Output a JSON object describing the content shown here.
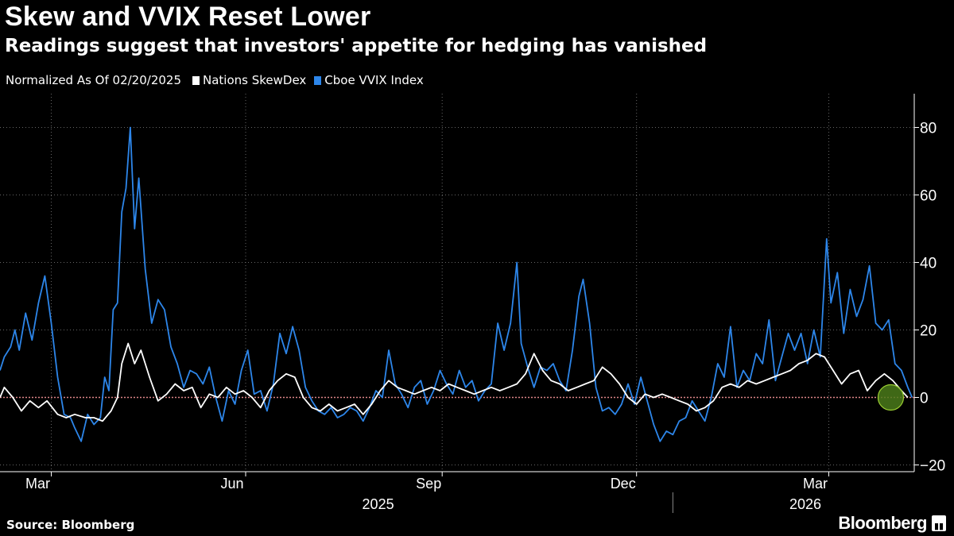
{
  "header": {
    "title": "Skew and VVIX Reset Lower",
    "subtitle": "Readings suggest that investors' appetite for hedging has vanished"
  },
  "legend": {
    "note": "Normalized As Of 02/20/2025",
    "items": [
      {
        "label": "Nations SkewDex",
        "color": "#ffffff"
      },
      {
        "label": "Cboe VVIX Index",
        "color": "#2d86ea"
      }
    ]
  },
  "footer": {
    "source": "Source: Bloomberg",
    "brand": "Bloomberg"
  },
  "colors": {
    "background": "#000000",
    "skewdex": "#ffffff",
    "vvix": "#2d86ea",
    "zero_line": "#e0868a",
    "highlight_fill": "#4a7a1a",
    "highlight_stroke": "#9acd32",
    "grid": "#666666"
  },
  "chart_data": {
    "type": "line",
    "title": "Skew and VVIX Reset Lower",
    "subtitle": "Readings suggest that investors' appetite for hedging has vanished",
    "x_start": "2025-02-20",
    "x_end": "2026-04-24",
    "xlim": [
      "2025-02-20",
      "2026-04-24"
    ],
    "ylim": [
      -22,
      90
    ],
    "y_ticks": [
      -20,
      0,
      20,
      40,
      60,
      80
    ],
    "y_axis_side": "right",
    "grid": "dotted",
    "legend_position": "top-left",
    "month_ticks": [
      {
        "label": "Mar",
        "date": "2025-03-16"
      },
      {
        "label": "Jun",
        "date": "2025-06-15"
      },
      {
        "label": "Sep",
        "date": "2025-09-15"
      },
      {
        "label": "Dec",
        "date": "2025-12-15"
      },
      {
        "label": "Mar",
        "date": "2026-03-15"
      }
    ],
    "year_labels": [
      {
        "label": "2025",
        "date": "2025-08-16"
      },
      {
        "label": "2026",
        "date": "2026-03-04"
      }
    ],
    "highlight_point": {
      "date": "2026-04-13",
      "value": 0
    },
    "series": [
      {
        "name": "Nations SkewDex",
        "points": [
          [
            "2025-02-20",
            0
          ],
          [
            "2025-02-22",
            3
          ],
          [
            "2025-02-26",
            0
          ],
          [
            "2025-03-02",
            -4
          ],
          [
            "2025-03-06",
            -1
          ],
          [
            "2025-03-10",
            -3
          ],
          [
            "2025-03-14",
            -1
          ],
          [
            "2025-03-19",
            -5
          ],
          [
            "2025-03-23",
            -6
          ],
          [
            "2025-03-27",
            -5
          ],
          [
            "2025-04-01",
            -6
          ],
          [
            "2025-04-05",
            -6
          ],
          [
            "2025-04-09",
            -7
          ],
          [
            "2025-04-13",
            -4
          ],
          [
            "2025-04-16",
            0
          ],
          [
            "2025-04-18",
            10
          ],
          [
            "2025-04-21",
            16
          ],
          [
            "2025-04-24",
            10
          ],
          [
            "2025-04-27",
            14
          ],
          [
            "2025-05-01",
            6
          ],
          [
            "2025-05-05",
            -1
          ],
          [
            "2025-05-09",
            1
          ],
          [
            "2025-05-13",
            4
          ],
          [
            "2025-05-17",
            2
          ],
          [
            "2025-05-21",
            3
          ],
          [
            "2025-05-25",
            -3
          ],
          [
            "2025-05-29",
            1
          ],
          [
            "2025-06-02",
            0
          ],
          [
            "2025-06-06",
            3
          ],
          [
            "2025-06-10",
            1
          ],
          [
            "2025-06-14",
            2
          ],
          [
            "2025-06-18",
            0
          ],
          [
            "2025-06-22",
            -3
          ],
          [
            "2025-06-26",
            2
          ],
          [
            "2025-06-30",
            5
          ],
          [
            "2025-07-04",
            7
          ],
          [
            "2025-07-08",
            6
          ],
          [
            "2025-07-12",
            0
          ],
          [
            "2025-07-16",
            -3
          ],
          [
            "2025-07-20",
            -4
          ],
          [
            "2025-07-24",
            -2
          ],
          [
            "2025-07-28",
            -4
          ],
          [
            "2025-08-01",
            -3
          ],
          [
            "2025-08-05",
            -2
          ],
          [
            "2025-08-09",
            -5
          ],
          [
            "2025-08-13",
            -2
          ],
          [
            "2025-08-17",
            2
          ],
          [
            "2025-08-21",
            5
          ],
          [
            "2025-08-25",
            3
          ],
          [
            "2025-08-29",
            2
          ],
          [
            "2025-09-02",
            1
          ],
          [
            "2025-09-06",
            2
          ],
          [
            "2025-09-10",
            3
          ],
          [
            "2025-09-14",
            2
          ],
          [
            "2025-09-18",
            4
          ],
          [
            "2025-09-22",
            3
          ],
          [
            "2025-09-26",
            2
          ],
          [
            "2025-09-30",
            1
          ],
          [
            "2025-10-04",
            2
          ],
          [
            "2025-10-08",
            3
          ],
          [
            "2025-10-12",
            2
          ],
          [
            "2025-10-16",
            3
          ],
          [
            "2025-10-20",
            4
          ],
          [
            "2025-10-24",
            7
          ],
          [
            "2025-10-28",
            13
          ],
          [
            "2025-11-01",
            8
          ],
          [
            "2025-11-05",
            5
          ],
          [
            "2025-11-09",
            4
          ],
          [
            "2025-11-13",
            2
          ],
          [
            "2025-11-17",
            3
          ],
          [
            "2025-11-21",
            4
          ],
          [
            "2025-11-25",
            5
          ],
          [
            "2025-11-29",
            9
          ],
          [
            "2025-12-03",
            7
          ],
          [
            "2025-12-07",
            4
          ],
          [
            "2025-12-11",
            0
          ],
          [
            "2025-12-15",
            -2
          ],
          [
            "2025-12-19",
            1
          ],
          [
            "2025-12-23",
            0
          ],
          [
            "2025-12-27",
            1
          ],
          [
            "2025-12-31",
            0
          ],
          [
            "2026-01-04",
            -1
          ],
          [
            "2026-01-08",
            -2
          ],
          [
            "2026-01-12",
            -4
          ],
          [
            "2026-01-16",
            -3
          ],
          [
            "2026-01-20",
            -1
          ],
          [
            "2026-01-24",
            3
          ],
          [
            "2026-01-28",
            4
          ],
          [
            "2026-02-01",
            3
          ],
          [
            "2026-02-05",
            5
          ],
          [
            "2026-02-09",
            4
          ],
          [
            "2026-02-13",
            5
          ],
          [
            "2026-02-17",
            6
          ],
          [
            "2026-02-21",
            7
          ],
          [
            "2026-02-25",
            8
          ],
          [
            "2026-03-01",
            10
          ],
          [
            "2026-03-05",
            11
          ],
          [
            "2026-03-09",
            13
          ],
          [
            "2026-03-13",
            12
          ],
          [
            "2026-03-17",
            8
          ],
          [
            "2026-03-21",
            4
          ],
          [
            "2026-03-25",
            7
          ],
          [
            "2026-03-29",
            8
          ],
          [
            "2026-04-02",
            2
          ],
          [
            "2026-04-06",
            5
          ],
          [
            "2026-04-10",
            7
          ],
          [
            "2026-04-14",
            5
          ],
          [
            "2026-04-18",
            2
          ],
          [
            "2026-04-21",
            0
          ]
        ]
      },
      {
        "name": "Cboe VVIX Index",
        "points": [
          [
            "2025-02-20",
            8
          ],
          [
            "2025-02-22",
            12
          ],
          [
            "2025-02-25",
            15
          ],
          [
            "2025-02-27",
            20
          ],
          [
            "2025-03-01",
            14
          ],
          [
            "2025-03-04",
            25
          ],
          [
            "2025-03-07",
            17
          ],
          [
            "2025-03-10",
            28
          ],
          [
            "2025-03-13",
            36
          ],
          [
            "2025-03-16",
            22
          ],
          [
            "2025-03-19",
            6
          ],
          [
            "2025-03-22",
            -5
          ],
          [
            "2025-03-25",
            -6
          ],
          [
            "2025-03-27",
            -9
          ],
          [
            "2025-03-30",
            -13
          ],
          [
            "2025-04-02",
            -5
          ],
          [
            "2025-04-05",
            -8
          ],
          [
            "2025-04-08",
            -6
          ],
          [
            "2025-04-10",
            6
          ],
          [
            "2025-04-12",
            2
          ],
          [
            "2025-04-14",
            26
          ],
          [
            "2025-04-16",
            28
          ],
          [
            "2025-04-18",
            55
          ],
          [
            "2025-04-20",
            62
          ],
          [
            "2025-04-22",
            80
          ],
          [
            "2025-04-24",
            50
          ],
          [
            "2025-04-26",
            65
          ],
          [
            "2025-04-29",
            38
          ],
          [
            "2025-05-02",
            22
          ],
          [
            "2025-05-05",
            29
          ],
          [
            "2025-05-08",
            26
          ],
          [
            "2025-05-11",
            15
          ],
          [
            "2025-05-14",
            10
          ],
          [
            "2025-05-17",
            3
          ],
          [
            "2025-05-20",
            8
          ],
          [
            "2025-05-23",
            7
          ],
          [
            "2025-05-26",
            4
          ],
          [
            "2025-05-29",
            9
          ],
          [
            "2025-06-01",
            0
          ],
          [
            "2025-06-04",
            -7
          ],
          [
            "2025-06-07",
            2
          ],
          [
            "2025-06-10",
            -2
          ],
          [
            "2025-06-13",
            8
          ],
          [
            "2025-06-16",
            14
          ],
          [
            "2025-06-19",
            1
          ],
          [
            "2025-06-22",
            2
          ],
          [
            "2025-06-25",
            -4
          ],
          [
            "2025-06-28",
            4
          ],
          [
            "2025-07-01",
            19
          ],
          [
            "2025-07-04",
            13
          ],
          [
            "2025-07-07",
            21
          ],
          [
            "2025-07-10",
            14
          ],
          [
            "2025-07-13",
            3
          ],
          [
            "2025-07-16",
            -1
          ],
          [
            "2025-07-19",
            -4
          ],
          [
            "2025-07-22",
            -5
          ],
          [
            "2025-07-25",
            -3
          ],
          [
            "2025-07-28",
            -6
          ],
          [
            "2025-07-31",
            -5
          ],
          [
            "2025-08-03",
            -3
          ],
          [
            "2025-08-06",
            -4
          ],
          [
            "2025-08-09",
            -7
          ],
          [
            "2025-08-12",
            -3
          ],
          [
            "2025-08-15",
            2
          ],
          [
            "2025-08-18",
            0
          ],
          [
            "2025-08-21",
            14
          ],
          [
            "2025-08-24",
            4
          ],
          [
            "2025-08-27",
            1
          ],
          [
            "2025-08-30",
            -3
          ],
          [
            "2025-09-02",
            3
          ],
          [
            "2025-09-05",
            5
          ],
          [
            "2025-09-08",
            -2
          ],
          [
            "2025-09-11",
            2
          ],
          [
            "2025-09-14",
            8
          ],
          [
            "2025-09-17",
            4
          ],
          [
            "2025-09-20",
            1
          ],
          [
            "2025-09-23",
            8
          ],
          [
            "2025-09-26",
            3
          ],
          [
            "2025-09-29",
            5
          ],
          [
            "2025-10-02",
            -1
          ],
          [
            "2025-10-05",
            2
          ],
          [
            "2025-10-08",
            4
          ],
          [
            "2025-10-11",
            22
          ],
          [
            "2025-10-14",
            14
          ],
          [
            "2025-10-17",
            22
          ],
          [
            "2025-10-20",
            40
          ],
          [
            "2025-10-22",
            16
          ],
          [
            "2025-10-25",
            9
          ],
          [
            "2025-10-28",
            3
          ],
          [
            "2025-10-31",
            9
          ],
          [
            "2025-11-03",
            8
          ],
          [
            "2025-11-06",
            10
          ],
          [
            "2025-11-09",
            5
          ],
          [
            "2025-11-12",
            2
          ],
          [
            "2025-11-15",
            14
          ],
          [
            "2025-11-18",
            30
          ],
          [
            "2025-11-20",
            35
          ],
          [
            "2025-11-23",
            22
          ],
          [
            "2025-11-26",
            3
          ],
          [
            "2025-11-29",
            -4
          ],
          [
            "2025-12-02",
            -3
          ],
          [
            "2025-12-05",
            -5
          ],
          [
            "2025-12-08",
            -2
          ],
          [
            "2025-12-11",
            4
          ],
          [
            "2025-12-14",
            -2
          ],
          [
            "2025-12-17",
            6
          ],
          [
            "2025-12-20",
            -1
          ],
          [
            "2025-12-23",
            -8
          ],
          [
            "2025-12-26",
            -13
          ],
          [
            "2025-12-29",
            -10
          ],
          [
            "2026-01-01",
            -11
          ],
          [
            "2026-01-04",
            -7
          ],
          [
            "2026-01-07",
            -6
          ],
          [
            "2026-01-10",
            -1
          ],
          [
            "2026-01-13",
            -4
          ],
          [
            "2026-01-16",
            -7
          ],
          [
            "2026-01-19",
            0
          ],
          [
            "2026-01-22",
            10
          ],
          [
            "2026-01-25",
            6
          ],
          [
            "2026-01-28",
            21
          ],
          [
            "2026-01-31",
            3
          ],
          [
            "2026-02-03",
            8
          ],
          [
            "2026-02-06",
            5
          ],
          [
            "2026-02-09",
            13
          ],
          [
            "2026-02-12",
            10
          ],
          [
            "2026-02-15",
            23
          ],
          [
            "2026-02-18",
            5
          ],
          [
            "2026-02-21",
            12
          ],
          [
            "2026-02-24",
            19
          ],
          [
            "2026-02-27",
            14
          ],
          [
            "2026-03-02",
            19
          ],
          [
            "2026-03-05",
            10
          ],
          [
            "2026-03-08",
            20
          ],
          [
            "2026-03-11",
            12
          ],
          [
            "2026-03-14",
            47
          ],
          [
            "2026-03-16",
            28
          ],
          [
            "2026-03-19",
            37
          ],
          [
            "2026-03-22",
            19
          ],
          [
            "2026-03-25",
            32
          ],
          [
            "2026-03-28",
            24
          ],
          [
            "2026-03-31",
            29
          ],
          [
            "2026-04-03",
            39
          ],
          [
            "2026-04-06",
            22
          ],
          [
            "2026-04-09",
            20
          ],
          [
            "2026-04-12",
            23
          ],
          [
            "2026-04-15",
            10
          ],
          [
            "2026-04-18",
            8
          ],
          [
            "2026-04-21",
            3
          ],
          [
            "2026-04-23",
            0
          ]
        ]
      }
    ]
  }
}
